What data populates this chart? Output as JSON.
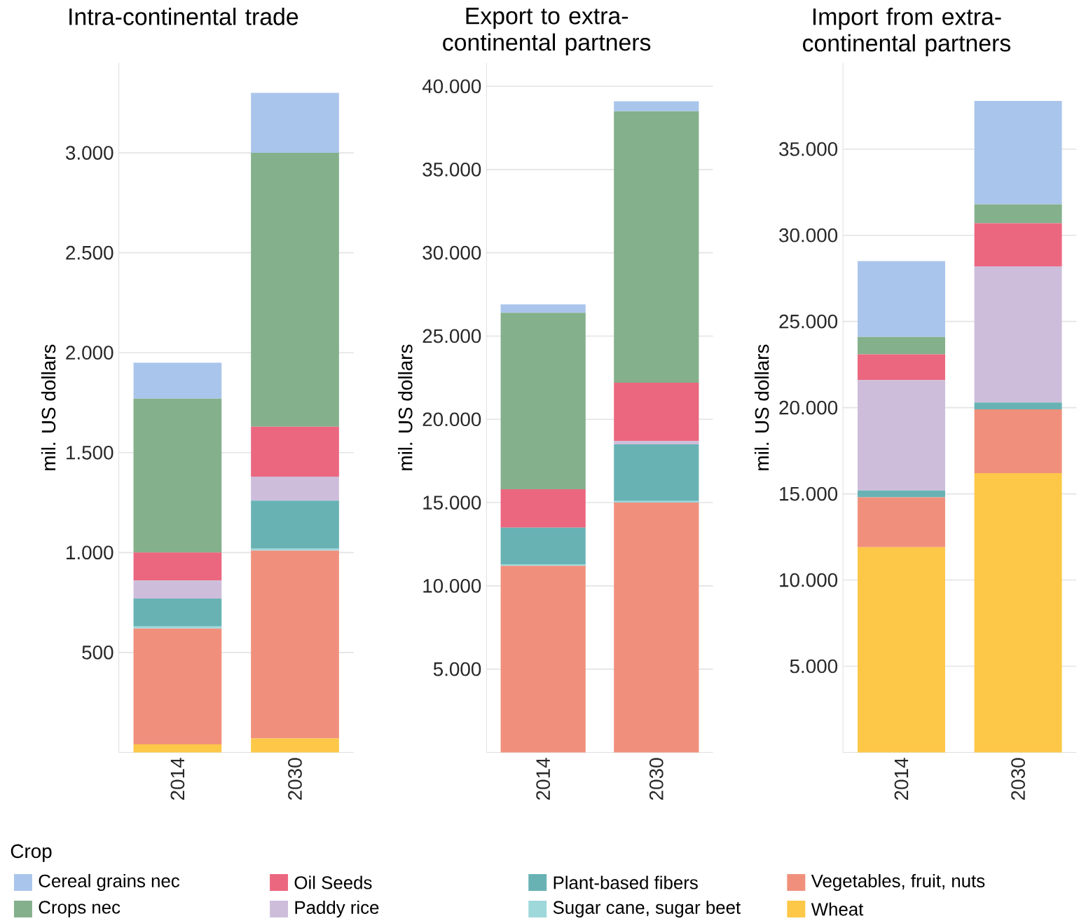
{
  "chart_data": [
    {
      "type": "bar",
      "stacked": true,
      "title": "Intra-continental trade",
      "ylabel": "mil. US dollars",
      "categories": [
        "2014",
        "2030"
      ],
      "ylim": [
        0,
        3450
      ],
      "yticks": [
        {
          "value": 500,
          "label": "500"
        },
        {
          "value": 1000,
          "label": "1.000"
        },
        {
          "value": 1500,
          "label": "1.500"
        },
        {
          "value": 2000,
          "label": "2.000"
        },
        {
          "value": 2500,
          "label": "2.500"
        },
        {
          "value": 3000,
          "label": "3.000"
        }
      ],
      "grid": "y",
      "legend": "bottom",
      "legend_title": "Crop",
      "series": [
        {
          "name": "Wheat",
          "color": "#fdc748",
          "values": [
            40,
            70
          ]
        },
        {
          "name": "Vegetables, fruit, nuts",
          "color": "#f0907c",
          "values": [
            580,
            940
          ]
        },
        {
          "name": "Sugar cane, sugar beet",
          "color": "#9ed8db",
          "values": [
            10,
            10
          ]
        },
        {
          "name": "Plant-based fibers",
          "color": "#68b2b4",
          "values": [
            140,
            240
          ]
        },
        {
          "name": "Paddy rice",
          "color": "#cdbdda",
          "values": [
            90,
            120
          ]
        },
        {
          "name": "Oil Seeds",
          "color": "#eb677f",
          "values": [
            140,
            250
          ]
        },
        {
          "name": "Crops nec",
          "color": "#84b08c",
          "values": [
            770,
            1370
          ]
        },
        {
          "name": "Cereal grains nec",
          "color": "#aac5eb",
          "values": [
            180,
            300
          ]
        }
      ]
    },
    {
      "type": "bar",
      "stacked": true,
      "title": "Export to extra-continental partners",
      "ylabel": "mil. US dollars",
      "categories": [
        "2014",
        "2030"
      ],
      "ylim": [
        0,
        41400
      ],
      "yticks": [
        {
          "value": 5000,
          "label": "5.000"
        },
        {
          "value": 10000,
          "label": "10.000"
        },
        {
          "value": 15000,
          "label": "15.000"
        },
        {
          "value": 20000,
          "label": "20.000"
        },
        {
          "value": 25000,
          "label": "25.000"
        },
        {
          "value": 30000,
          "label": "30.000"
        },
        {
          "value": 35000,
          "label": "35.000"
        },
        {
          "value": 40000,
          "label": "40.000"
        }
      ],
      "grid": "y",
      "series": [
        {
          "color": "#fdc748",
          "values": [
            null,
            null
          ]
        },
        {
          "color": "#f0907c",
          "values": [
            11200,
            15000
          ]
        },
        {
          "color": "#9ed8db",
          "values": [
            100,
            100
          ]
        },
        {
          "color": "#68b2b4",
          "values": [
            2200,
            3400
          ]
        },
        {
          "color": "#cdbdda",
          "values": [
            null,
            200
          ]
        },
        {
          "color": "#eb677f",
          "values": [
            2300,
            3500
          ]
        },
        {
          "color": "#84b08c",
          "values": [
            10600,
            16300
          ]
        },
        {
          "color": "#aac5eb",
          "values": [
            500,
            600
          ]
        }
      ]
    },
    {
      "type": "bar",
      "stacked": true,
      "title": "Import from extra-continental partners",
      "ylabel": "mil. US dollars",
      "categories": [
        "2014",
        "2030"
      ],
      "ylim": [
        0,
        40000
      ],
      "yticks": [
        {
          "value": 5000,
          "label": "5.000"
        },
        {
          "value": 10000,
          "label": "10.000"
        },
        {
          "value": 15000,
          "label": "15.000"
        },
        {
          "value": 20000,
          "label": "20.000"
        },
        {
          "value": 25000,
          "label": "25.000"
        },
        {
          "value": 30000,
          "label": "30.000"
        },
        {
          "value": 35000,
          "label": "35.000"
        }
      ],
      "grid": "y",
      "series": [
        {
          "color": "#fdc748",
          "values": [
            11900,
            16200
          ]
        },
        {
          "color": "#f0907c",
          "values": [
            2900,
            3700
          ]
        },
        {
          "color": "#9ed8db",
          "values": [
            null,
            null
          ]
        },
        {
          "color": "#68b2b4",
          "values": [
            400,
            400
          ]
        },
        {
          "color": "#cdbdda",
          "values": [
            6400,
            7900
          ]
        },
        {
          "color": "#eb677f",
          "values": [
            1500,
            2500
          ]
        },
        {
          "color": "#84b08c",
          "values": [
            1000,
            1100
          ]
        },
        {
          "color": "#aac5eb",
          "values": [
            4400,
            6000
          ]
        }
      ]
    }
  ]
}
